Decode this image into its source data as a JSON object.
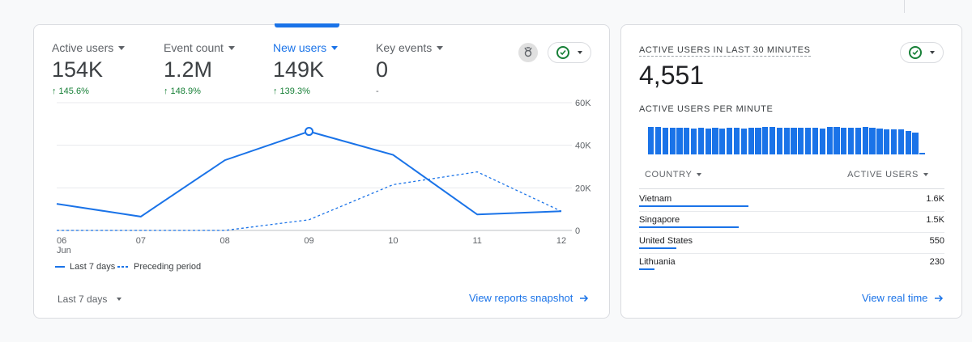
{
  "overview": {
    "metrics": [
      {
        "label": "Active users",
        "value": "154K",
        "delta": "↑ 145.6%",
        "selected": false
      },
      {
        "label": "Event count",
        "value": "1.2M",
        "delta": "↑ 148.9%",
        "selected": false
      },
      {
        "label": "New users",
        "value": "149K",
        "delta": "↑ 139.3%",
        "selected": true
      },
      {
        "label": "Key events",
        "value": "0",
        "delta": "-",
        "selected": false
      }
    ],
    "insights_icon": "insights-icon",
    "status_icon": "check-circle-icon",
    "legend": {
      "current": "Last 7 days",
      "previous": "Preceding period"
    },
    "date_range": "Last 7 days",
    "view_link": "View reports snapshot"
  },
  "chart_data": {
    "type": "line",
    "x": [
      "06",
      "07",
      "08",
      "09",
      "10",
      "11",
      "12"
    ],
    "x_month_label": "Jun",
    "series": [
      {
        "name": "Last 7 days",
        "style": "solid",
        "values": [
          12500,
          6500,
          33000,
          46500,
          35500,
          7500,
          9000
        ]
      },
      {
        "name": "Preceding period",
        "style": "dashed",
        "values": [
          0,
          0,
          0,
          5000,
          21500,
          27500,
          9000
        ]
      }
    ],
    "highlight_index": 3,
    "y_ticks": [
      "60K",
      "40K",
      "20K",
      "0"
    ],
    "ylim": [
      0,
      60000
    ],
    "grid": true,
    "legend_position": "bottom-left",
    "color": "#1a73e8"
  },
  "realtime": {
    "title": "ACTIVE USERS IN LAST 30 MINUTES",
    "value": "4,551",
    "per_minute_label": "ACTIVE USERS PER MINUTE",
    "per_minute_values": [
      1.0,
      1.0,
      0.97,
      0.98,
      0.96,
      0.97,
      0.95,
      0.96,
      0.95,
      0.96,
      0.95,
      0.97,
      0.97,
      0.95,
      0.96,
      0.96,
      1.0,
      0.99,
      0.97,
      0.98,
      0.97,
      0.96,
      0.98,
      0.97,
      0.95,
      0.99,
      1.0,
      0.96,
      0.98,
      0.96,
      1.0,
      0.98,
      0.95,
      0.91,
      0.91,
      0.91,
      0.86,
      0.79,
      0.06
    ],
    "table": {
      "col_country": "COUNTRY",
      "col_users": "ACTIVE USERS",
      "rows": [
        {
          "country": "Vietnam",
          "users": "1.6K",
          "share": 1.0
        },
        {
          "country": "Singapore",
          "users": "1.5K",
          "share": 0.91
        },
        {
          "country": "United States",
          "users": "550",
          "share": 0.34
        },
        {
          "country": "Lithuania",
          "users": "230",
          "share": 0.14
        }
      ]
    },
    "view_link": "View real time"
  },
  "colors": {
    "accent": "#1a73e8",
    "positive": "#188038"
  }
}
